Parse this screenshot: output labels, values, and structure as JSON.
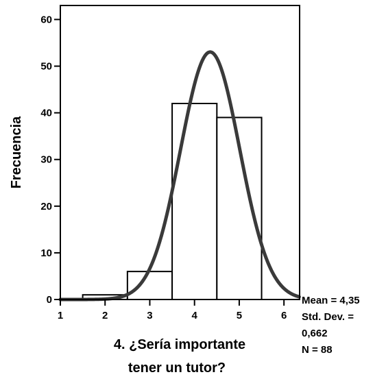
{
  "chart_data": {
    "type": "bar",
    "subtype": "histogram",
    "xlabel_lines": [
      "4. ¿Sería importante",
      "tener un tutor?"
    ],
    "ylabel": "Frecuencia",
    "xlim": [
      1,
      6.35
    ],
    "ylim": [
      0,
      63
    ],
    "x_ticks": [
      1,
      2,
      3,
      4,
      5,
      6
    ],
    "y_ticks": [
      0,
      10,
      20,
      30,
      40,
      50,
      60
    ],
    "bins": [
      {
        "x0": 1.5,
        "x1": 2.5,
        "count": 1
      },
      {
        "x0": 2.5,
        "x1": 3.5,
        "count": 6
      },
      {
        "x0": 3.5,
        "x1": 4.5,
        "count": 42
      },
      {
        "x0": 4.5,
        "x1": 5.5,
        "count": 39
      }
    ],
    "normal_curve": {
      "mean": 4.35,
      "std": 0.662,
      "n": 88,
      "bin_width": 1
    },
    "stats": [
      "Mean = 4,35",
      "Std. Dev. =",
      "0,662",
      "N = 88"
    ],
    "grid": false,
    "legend": "none"
  }
}
